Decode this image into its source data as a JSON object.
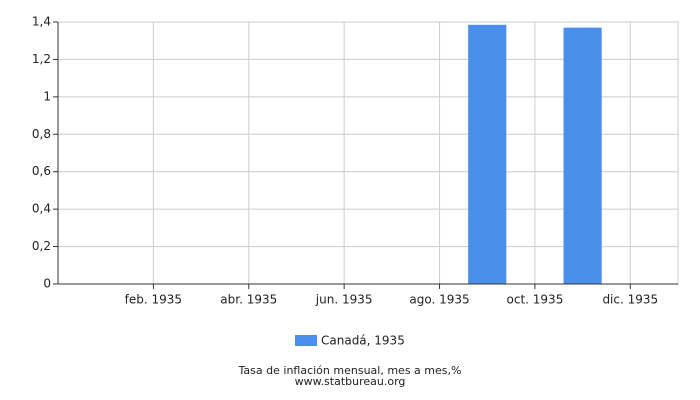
{
  "chart_data": {
    "type": "bar",
    "categories": [
      null,
      "feb. 1935",
      null,
      "abr. 1935",
      null,
      "jun. 1935",
      null,
      "ago. 1935",
      null,
      "oct. 1935",
      null,
      "dic. 1935"
    ],
    "series": [
      {
        "name": "Canadá, 1935",
        "color": "#4a8fea",
        "values": [
          null,
          null,
          null,
          null,
          null,
          null,
          null,
          null,
          1.385,
          null,
          1.37,
          null
        ]
      }
    ],
    "ylim": [
      0,
      1.4
    ],
    "yticks": [
      0,
      {
        "value": 0.2,
        "label": "0,2"
      },
      {
        "value": 0.4,
        "label": "0,4"
      },
      {
        "value": 0.6,
        "label": "0,6"
      },
      {
        "value": 0.8,
        "label": "0,8"
      },
      1,
      {
        "value": 1.2,
        "label": "1,2"
      },
      {
        "value": 1.4,
        "label": "1,4"
      }
    ],
    "grid": true,
    "footer": [
      "Tasa de inflación mensual, mes a mes,%",
      "www.statbureau.org"
    ]
  }
}
